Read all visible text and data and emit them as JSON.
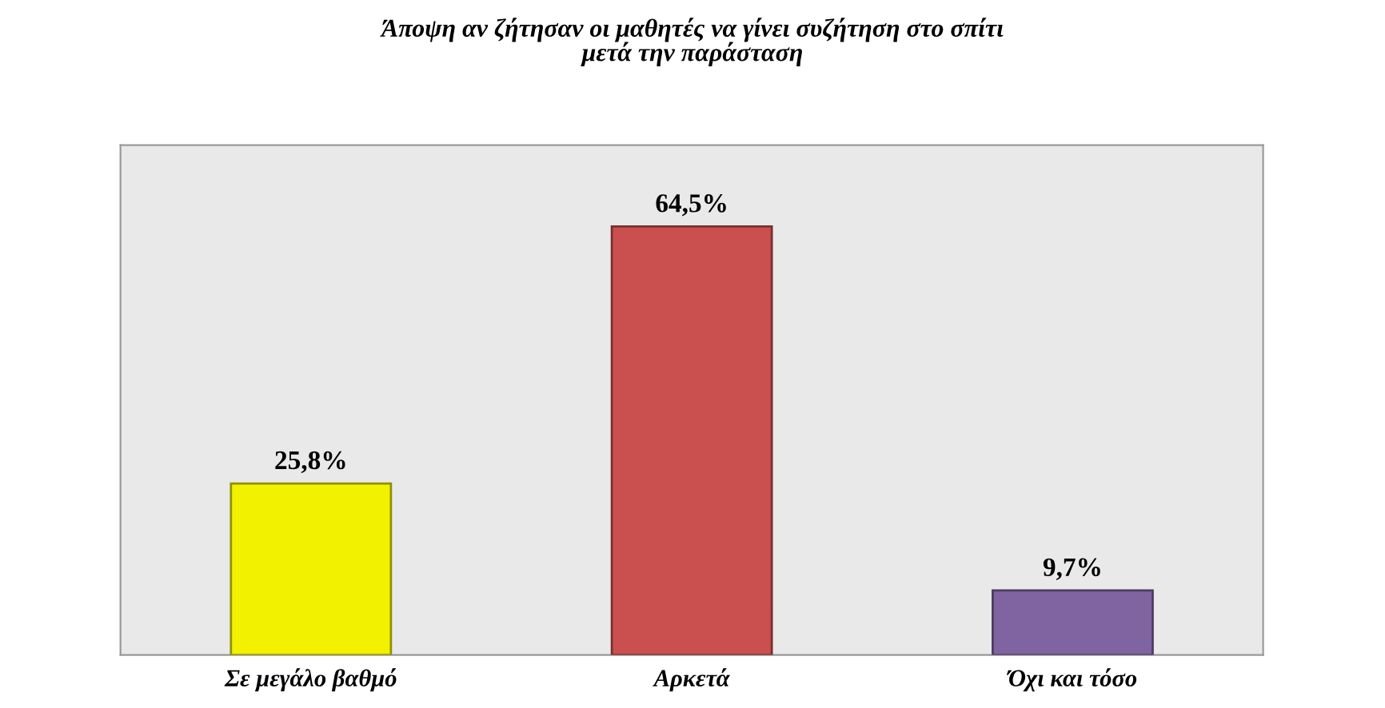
{
  "chart_data": {
    "type": "bar",
    "title": "Άποψη αν ζήτησαν οι μαθητές να γίνει συζήτηση στο σπίτι\nμετά την παράσταση",
    "categories": [
      "Σε μεγάλο βαθμό",
      "Αρκετά",
      "Όχι και τόσο"
    ],
    "values": [
      25.8,
      64.5,
      9.7
    ],
    "colors": [
      "#f2f200",
      "#c9504f",
      "#8064a2"
    ],
    "value_labels": [
      "25,8%",
      "64,5%",
      "9,7%"
    ],
    "tick_labels": "x"
  }
}
